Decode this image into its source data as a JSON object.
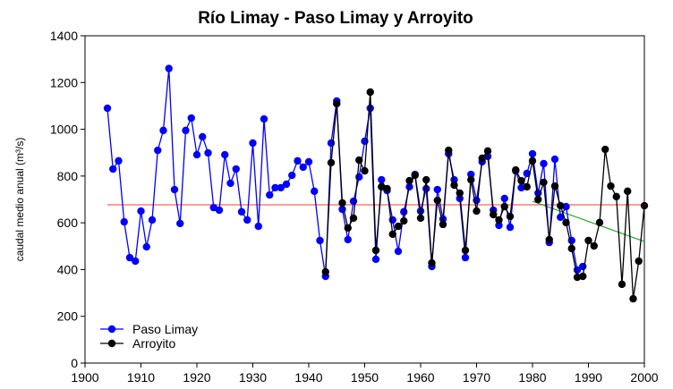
{
  "chart_data": {
    "type": "line",
    "title": "Río Limay - Paso Limay y Arroyito",
    "y_label": "caudal medio anual (m³/s)",
    "xlim": [
      1900,
      2000
    ],
    "xticks": [
      1900,
      1910,
      1920,
      1930,
      1940,
      1950,
      1960,
      1970,
      1980,
      1990,
      2000
    ],
    "ylim": [
      0,
      1400
    ],
    "yticks": [
      0,
      200,
      400,
      600,
      800,
      1000,
      1200,
      1400
    ],
    "legend": "lower left",
    "series": [
      {
        "name": "Paso Limay",
        "color": "#0000ff",
        "x": [
          1904,
          1905,
          1906,
          1907,
          1908,
          1909,
          1910,
          1911,
          1912,
          1913,
          1914,
          1915,
          1916,
          1917,
          1918,
          1919,
          1920,
          1921,
          1922,
          1923,
          1924,
          1925,
          1926,
          1927,
          1928,
          1929,
          1930,
          1931,
          1932,
          1933,
          1934,
          1935,
          1936,
          1937,
          1938,
          1939,
          1940,
          1941,
          1942,
          1943,
          1944,
          1945,
          1946,
          1947,
          1948,
          1949,
          1950,
          1951,
          1952,
          1953,
          1954,
          1955,
          1956,
          1957,
          1958,
          1959,
          1960,
          1961,
          1962,
          1963,
          1964,
          1965,
          1966,
          1967,
          1968,
          1969,
          1970,
          1971,
          1972,
          1973,
          1974,
          1975,
          1976,
          1977,
          1978,
          1979,
          1980,
          1981,
          1982,
          1983,
          1984,
          1985,
          1986,
          1987,
          1988,
          1989
        ],
        "values": [
          1090,
          830,
          865,
          604,
          451,
          436,
          650,
          497,
          612,
          910,
          995,
          1260,
          742,
          597,
          995,
          1048,
          891,
          968,
          899,
          665,
          654,
          891,
          769,
          830,
          647,
          612,
          941,
          585,
          1044,
          719,
          750,
          750,
          765,
          803,
          865,
          838,
          861,
          735,
          524,
          371,
          941,
          1121,
          658,
          528,
          692,
          796,
          949,
          1090,
          444,
          784,
          738,
          612,
          478,
          647,
          754,
          807,
          650,
          746,
          413,
          742,
          616,
          895,
          784,
          704,
          451,
          807,
          696,
          861,
          884,
          654,
          589,
          704,
          581,
          822,
          750,
          811,
          895,
          727,
          853,
          516,
          872,
          624,
          669,
          524,
          398,
          413
        ]
      },
      {
        "name": "Arroyito",
        "color": "#000000",
        "x": [
          1943,
          1944,
          1945,
          1946,
          1947,
          1948,
          1949,
          1950,
          1951,
          1952,
          1953,
          1954,
          1955,
          1956,
          1957,
          1958,
          1959,
          1960,
          1961,
          1962,
          1963,
          1964,
          1965,
          1966,
          1967,
          1968,
          1969,
          1970,
          1971,
          1972,
          1973,
          1974,
          1975,
          1976,
          1977,
          1978,
          1979,
          1980,
          1981,
          1982,
          1983,
          1984,
          1985,
          1986,
          1987,
          1988,
          1989,
          1990,
          1991,
          1992,
          1993,
          1994,
          1995,
          1996,
          1997,
          1998,
          1999,
          2000
        ],
        "values": [
          390,
          857,
          1109,
          685,
          578,
          620,
          868,
          822,
          1159,
          482,
          754,
          746,
          551,
          585,
          608,
          780,
          803,
          620,
          784,
          428,
          696,
          593,
          910,
          761,
          727,
          482,
          784,
          650,
          876,
          907,
          635,
          612,
          669,
          627,
          826,
          780,
          754,
          865,
          700,
          773,
          528,
          757,
          673,
          601,
          490,
          367,
          371,
          524,
          501,
          601,
          914,
          757,
          712,
          337,
          735,
          275,
          436,
          673
        ]
      }
    ],
    "reference_lines": [
      {
        "color": "#ff6060",
        "x": [
          1904,
          2000
        ],
        "values": [
          677,
          677
        ]
      },
      {
        "color": "#22aa22",
        "x": [
          1980,
          2000
        ],
        "values": [
          692,
          520
        ]
      }
    ]
  }
}
